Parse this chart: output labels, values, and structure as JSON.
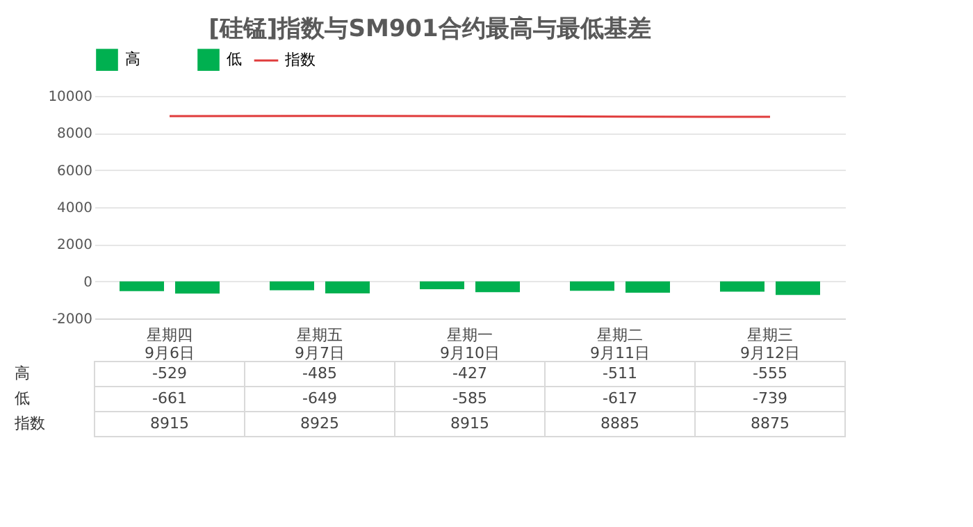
{
  "chart_data": {
    "type": "bar",
    "title": "[硅锰]指数与SM901合约最高与最低基差",
    "categories": [
      "星期四\n9月6日",
      "星期五\n9月7日",
      "星期一\n9月10日",
      "星期二\n9月11日",
      "星期三\n9月12日"
    ],
    "series": [
      {
        "name": "高",
        "color": "#00b050",
        "values": [
          -529,
          -485,
          -427,
          -511,
          -555
        ]
      },
      {
        "name": "低",
        "color": "#00b050",
        "values": [
          -661,
          -649,
          -585,
          -617,
          -739
        ]
      },
      {
        "name": "指数",
        "type": "line",
        "color": "#e03c3c",
        "values": [
          8915,
          8925,
          8915,
          8885,
          8875
        ]
      }
    ],
    "ylim": [
      -2000,
      10000
    ],
    "yticks": [
      -2000,
      0,
      2000,
      4000,
      6000,
      8000,
      10000
    ],
    "grid": "y",
    "legend": "top",
    "data_labels": true
  }
}
